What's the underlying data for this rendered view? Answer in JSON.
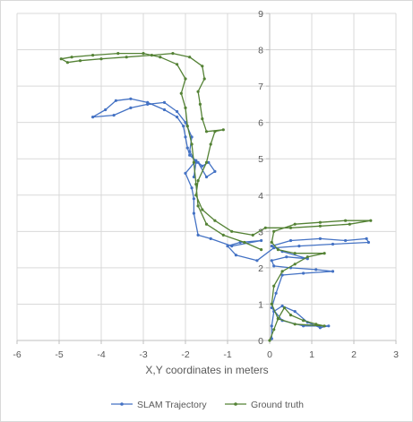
{
  "chart_data": {
    "type": "scatter",
    "title": "",
    "xlabel": "X,Y coordinates in meters",
    "ylabel": "",
    "xlim": [
      -6,
      3
    ],
    "ylim": [
      0,
      9
    ],
    "x_ticks": [
      "-6",
      "-5",
      "-4",
      "-3",
      "-2",
      "-1",
      "0",
      "1",
      "2",
      "3"
    ],
    "y_ticks": [
      "0",
      "1",
      "2",
      "3",
      "4",
      "5",
      "6",
      "7",
      "8",
      "9"
    ],
    "grid": "major gridlines",
    "legend": "bottom",
    "series": [
      {
        "name": "SLAM Trajectory",
        "color": "#4472c4",
        "points": [
          [
            0.05,
            0.05
          ],
          [
            0.05,
            0.4
          ],
          [
            0.1,
            0.8
          ],
          [
            0.3,
            0.95
          ],
          [
            0.6,
            0.8
          ],
          [
            0.9,
            0.5
          ],
          [
            1.2,
            0.35
          ],
          [
            1.4,
            0.4
          ],
          [
            0.8,
            0.4
          ],
          [
            0.3,
            0.55
          ],
          [
            0.05,
            0.9
          ],
          [
            0.15,
            1.3
          ],
          [
            0.3,
            1.8
          ],
          [
            0.8,
            1.85
          ],
          [
            1.5,
            1.9
          ],
          [
            1.1,
            1.95
          ],
          [
            0.5,
            2.0
          ],
          [
            0.1,
            2.05
          ],
          [
            0.05,
            2.2
          ],
          [
            0.4,
            2.3
          ],
          [
            0.9,
            2.25
          ],
          [
            0.3,
            2.45
          ],
          [
            0.05,
            2.6
          ],
          [
            0.5,
            2.75
          ],
          [
            1.2,
            2.8
          ],
          [
            1.8,
            2.75
          ],
          [
            2.3,
            2.8
          ],
          [
            2.35,
            2.7
          ],
          [
            1.5,
            2.65
          ],
          [
            0.7,
            2.6
          ],
          [
            0.1,
            2.55
          ],
          [
            -0.3,
            2.2
          ],
          [
            -0.8,
            2.35
          ],
          [
            -1.0,
            2.6
          ],
          [
            -0.7,
            2.7
          ],
          [
            -0.2,
            2.75
          ],
          [
            -0.9,
            2.6
          ],
          [
            -1.4,
            2.8
          ],
          [
            -1.7,
            2.9
          ],
          [
            -1.8,
            3.5
          ],
          [
            -1.8,
            3.9
          ],
          [
            -1.85,
            4.2
          ],
          [
            -2.0,
            4.6
          ],
          [
            -1.75,
            4.95
          ],
          [
            -1.6,
            4.8
          ],
          [
            -1.45,
            4.9
          ],
          [
            -1.3,
            4.65
          ],
          [
            -1.5,
            4.5
          ],
          [
            -1.7,
            4.9
          ],
          [
            -1.9,
            5.1
          ],
          [
            -1.95,
            5.3
          ],
          [
            -2.0,
            5.6
          ],
          [
            -2.05,
            5.9
          ],
          [
            -2.2,
            6.15
          ],
          [
            -2.5,
            6.35
          ],
          [
            -2.9,
            6.55
          ],
          [
            -3.3,
            6.65
          ],
          [
            -3.65,
            6.6
          ],
          [
            -3.9,
            6.35
          ],
          [
            -4.2,
            6.15
          ],
          [
            -3.7,
            6.2
          ],
          [
            -3.3,
            6.4
          ],
          [
            -2.9,
            6.5
          ],
          [
            -2.5,
            6.55
          ],
          [
            -2.2,
            6.3
          ],
          [
            -2.0,
            6.0
          ],
          [
            -1.85,
            5.6
          ],
          [
            -1.9,
            5.2
          ],
          [
            -1.75,
            4.9
          ],
          [
            -1.8,
            4.5
          ]
        ]
      },
      {
        "name": "Ground truth",
        "color": "#548235",
        "points": [
          [
            0.0,
            0.0
          ],
          [
            0.1,
            0.3
          ],
          [
            0.2,
            0.6
          ],
          [
            0.35,
            0.9
          ],
          [
            0.5,
            0.7
          ],
          [
            0.8,
            0.55
          ],
          [
            1.1,
            0.45
          ],
          [
            1.3,
            0.4
          ],
          [
            0.6,
            0.45
          ],
          [
            0.2,
            0.6
          ],
          [
            0.05,
            1.0
          ],
          [
            0.1,
            1.5
          ],
          [
            0.3,
            1.9
          ],
          [
            0.6,
            2.1
          ],
          [
            0.9,
            2.3
          ],
          [
            1.3,
            2.4
          ],
          [
            0.6,
            2.4
          ],
          [
            0.2,
            2.5
          ],
          [
            0.05,
            2.7
          ],
          [
            0.1,
            3.0
          ],
          [
            0.6,
            3.2
          ],
          [
            1.2,
            3.25
          ],
          [
            1.8,
            3.3
          ],
          [
            2.4,
            3.3
          ],
          [
            1.9,
            3.2
          ],
          [
            1.2,
            3.15
          ],
          [
            0.5,
            3.1
          ],
          [
            -0.1,
            3.1
          ],
          [
            -0.4,
            2.9
          ],
          [
            -0.9,
            3.0
          ],
          [
            -1.3,
            3.3
          ],
          [
            -1.6,
            3.6
          ],
          [
            -1.75,
            4.0
          ],
          [
            -1.7,
            4.4
          ],
          [
            -1.5,
            4.9
          ],
          [
            -1.4,
            5.4
          ],
          [
            -1.3,
            5.75
          ],
          [
            -1.1,
            5.8
          ],
          [
            -1.5,
            5.75
          ],
          [
            -1.6,
            6.1
          ],
          [
            -1.65,
            6.5
          ],
          [
            -1.7,
            6.85
          ],
          [
            -1.55,
            7.2
          ],
          [
            -1.6,
            7.55
          ],
          [
            -1.9,
            7.8
          ],
          [
            -2.3,
            7.9
          ],
          [
            -2.8,
            7.85
          ],
          [
            -3.4,
            7.8
          ],
          [
            -4.0,
            7.75
          ],
          [
            -4.5,
            7.7
          ],
          [
            -4.8,
            7.65
          ],
          [
            -4.95,
            7.75
          ],
          [
            -4.7,
            7.8
          ],
          [
            -4.2,
            7.85
          ],
          [
            -3.6,
            7.9
          ],
          [
            -3.0,
            7.9
          ],
          [
            -2.6,
            7.8
          ],
          [
            -2.2,
            7.6
          ],
          [
            -2.0,
            7.2
          ],
          [
            -2.1,
            6.8
          ],
          [
            -2.0,
            6.4
          ],
          [
            -1.95,
            5.9
          ],
          [
            -1.85,
            5.4
          ],
          [
            -1.8,
            4.9
          ],
          [
            -1.75,
            4.3
          ],
          [
            -1.7,
            3.7
          ],
          [
            -1.5,
            3.2
          ],
          [
            -1.1,
            2.9
          ],
          [
            -0.6,
            2.7
          ],
          [
            -0.2,
            2.5
          ]
        ]
      }
    ]
  }
}
